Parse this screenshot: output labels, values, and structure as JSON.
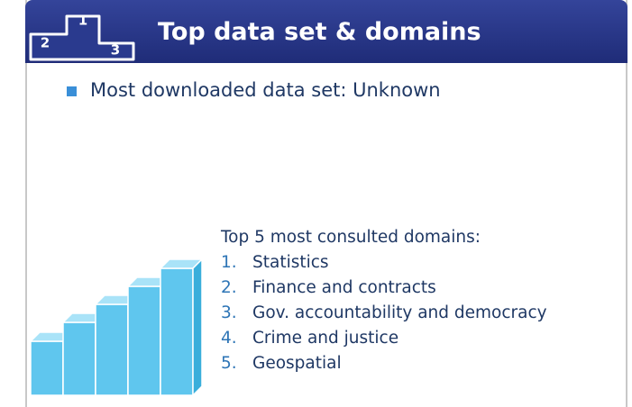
{
  "header": {
    "title": "Top data set & domains",
    "icon_labels": [
      "1",
      "2",
      "3"
    ]
  },
  "bullet": "Most downloaded data set: Unknown",
  "domains": {
    "heading": "Top 5 most consulted domains:",
    "items": [
      {
        "number": "1.",
        "label": "Statistics"
      },
      {
        "number": "2.",
        "label": "Finance and contracts"
      },
      {
        "number": "3.",
        "label": "Gov. accountability and democracy"
      },
      {
        "number": "4.",
        "label": "Crime and justice"
      },
      {
        "number": "5.",
        "label": "Geospatial"
      }
    ]
  }
}
